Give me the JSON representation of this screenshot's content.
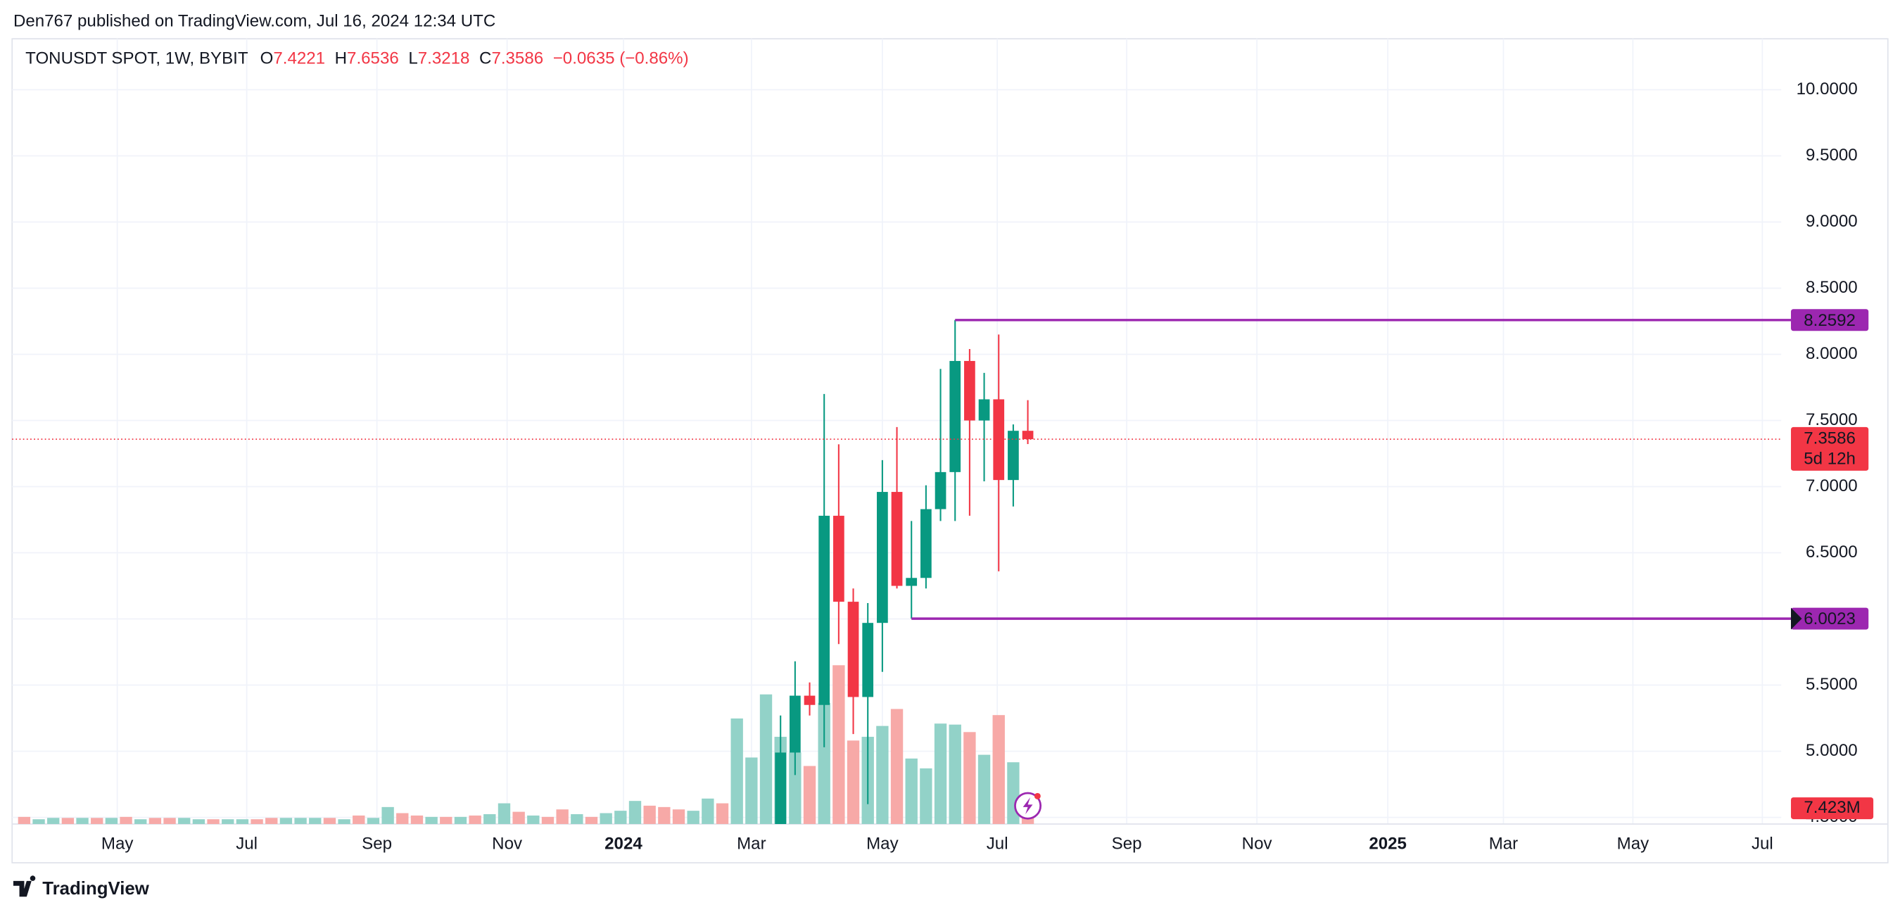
{
  "chart_data": {
    "type": "candlestick",
    "attribution": "Den767 published on TradingView.com, Jul 16, 2024 12:34 UTC",
    "title": "TONUSDT SPOT, 1W, BYBIT",
    "legend_labels": {
      "open": "O",
      "high": "H",
      "low": "L",
      "close": "C"
    },
    "change": "−0.0635 (−0.86%)",
    "open": [
      null,
      null,
      null,
      null,
      null,
      null,
      null,
      null,
      null,
      null,
      null,
      null,
      null,
      null,
      null,
      null,
      null,
      null,
      null,
      null,
      null,
      null,
      null,
      null,
      null,
      null,
      null,
      null,
      null,
      null,
      null,
      null,
      null,
      null,
      null,
      null,
      null,
      null,
      null,
      null,
      null,
      null,
      null,
      null,
      null,
      null,
      null,
      null,
      null,
      null,
      null,
      null,
      4.35,
      4.99,
      5.42,
      5.35,
      6.78,
      6.13,
      5.41,
      5.97,
      6.96,
      6.25,
      6.31,
      6.83,
      7.11,
      7.95,
      7.5,
      7.66,
      7.05,
      7.4221
    ],
    "high": [
      null,
      null,
      null,
      null,
      null,
      null,
      null,
      null,
      null,
      null,
      null,
      null,
      null,
      null,
      null,
      null,
      null,
      null,
      null,
      null,
      null,
      null,
      null,
      null,
      null,
      null,
      null,
      null,
      null,
      null,
      null,
      null,
      null,
      null,
      null,
      null,
      null,
      null,
      null,
      null,
      null,
      null,
      null,
      null,
      null,
      null,
      null,
      null,
      null,
      null,
      null,
      null,
      5.27,
      5.68,
      5.52,
      7.7,
      7.32,
      6.23,
      6.12,
      7.2,
      7.45,
      6.74,
      7.01,
      7.89,
      8.2592,
      8.04,
      7.86,
      8.15,
      7.47,
      7.6536
    ],
    "low": [
      null,
      null,
      null,
      null,
      null,
      null,
      null,
      null,
      null,
      null,
      null,
      null,
      null,
      null,
      null,
      null,
      null,
      null,
      null,
      null,
      null,
      null,
      null,
      null,
      null,
      null,
      null,
      null,
      null,
      null,
      null,
      null,
      null,
      null,
      null,
      null,
      null,
      null,
      null,
      null,
      null,
      null,
      null,
      null,
      null,
      null,
      null,
      null,
      null,
      null,
      null,
      null,
      4.2,
      4.82,
      5.27,
      5.03,
      5.81,
      5.13,
      4.6,
      5.6,
      6.23,
      6.0023,
      6.23,
      6.74,
      6.74,
      6.78,
      7.04,
      6.36,
      6.85,
      7.3218
    ],
    "close": [
      null,
      null,
      null,
      null,
      null,
      null,
      null,
      null,
      null,
      null,
      null,
      null,
      null,
      null,
      null,
      null,
      null,
      null,
      null,
      null,
      null,
      null,
      null,
      null,
      null,
      null,
      null,
      null,
      null,
      null,
      null,
      null,
      null,
      null,
      null,
      null,
      null,
      null,
      null,
      null,
      null,
      null,
      null,
      null,
      null,
      null,
      null,
      null,
      null,
      null,
      null,
      null,
      4.99,
      5.42,
      5.35,
      6.78,
      6.13,
      5.41,
      5.97,
      6.96,
      6.25,
      6.31,
      6.83,
      7.11,
      7.95,
      7.5,
      7.66,
      7.05,
      7.4221,
      7.3586
    ],
    "volume": [
      2.1,
      1.4,
      1.8,
      1.8,
      1.8,
      1.8,
      1.8,
      2.1,
      1.4,
      1.8,
      1.8,
      1.8,
      1.4,
      1.4,
      1.4,
      1.4,
      1.4,
      1.8,
      1.8,
      1.8,
      1.8,
      1.8,
      1.4,
      2.5,
      1.8,
      5.0,
      3.2,
      2.5,
      2.1,
      2.1,
      2.1,
      2.5,
      2.9,
      6.1,
      3.6,
      2.5,
      2.1,
      4.3,
      2.9,
      2.1,
      3.2,
      3.9,
      6.8,
      5.4,
      5.0,
      4.3,
      3.9,
      7.5,
      6.1,
      31.1,
      19.6,
      38.2,
      25.7,
      21.1,
      17.1,
      35.7,
      46.8,
      24.6,
      25.7,
      28.9,
      33.9,
      19.3,
      16.4,
      29.6,
      29.3,
      27.1,
      20.4,
      32.1,
      18.2,
      7.423
    ],
    "volume_rising": [
      false,
      true,
      true,
      false,
      true,
      false,
      true,
      false,
      true,
      false,
      false,
      true,
      true,
      false,
      true,
      true,
      false,
      false,
      true,
      true,
      true,
      false,
      true,
      false,
      true,
      true,
      false,
      false,
      true,
      false,
      true,
      false,
      true,
      true,
      false,
      true,
      false,
      false,
      true,
      false,
      true,
      true,
      true,
      false,
      false,
      false,
      true,
      true,
      false,
      true,
      true,
      true,
      true,
      true,
      false,
      true,
      false,
      false,
      true,
      true,
      false,
      true,
      true,
      true,
      true,
      false,
      true,
      false,
      true,
      false
    ],
    "xlim": [
      -0.83,
      120.8
    ],
    "xticks": [
      {
        "value": 6.4,
        "label": "May"
      },
      {
        "value": 15.3,
        "label": "Jul"
      },
      {
        "value": 24.25,
        "label": "Sep"
      },
      {
        "value": 33.2,
        "label": "Nov"
      },
      {
        "value": 41.2,
        "label": "2024"
      },
      {
        "value": 50,
        "label": "Mar"
      },
      {
        "value": 59,
        "label": "May"
      },
      {
        "value": 66.9,
        "label": "Jul"
      },
      {
        "value": 75.8,
        "label": "Sep"
      },
      {
        "value": 84.75,
        "label": "Nov"
      },
      {
        "value": 93.75,
        "label": "2025"
      },
      {
        "value": 101.7,
        "label": "Mar"
      },
      {
        "value": 110.6,
        "label": "May"
      },
      {
        "value": 119.5,
        "label": "Jul"
      }
    ],
    "ylim": [
      4.45,
      10.385
    ],
    "yticks": [
      {
        "value": 4.5,
        "label": "4.5000"
      },
      {
        "value": 5,
        "label": "5.0000"
      },
      {
        "value": 5.5,
        "label": "5.5000"
      },
      {
        "value": 6,
        "label": "6.0000"
      },
      {
        "value": 6.5,
        "label": "6.5000"
      },
      {
        "value": 7,
        "label": "7.0000"
      },
      {
        "value": 7.5,
        "label": "7.5000"
      },
      {
        "value": 8,
        "label": "8.0000"
      },
      {
        "value": 8.5,
        "label": "8.5000"
      },
      {
        "value": 9,
        "label": "9.0000"
      },
      {
        "value": 9.5,
        "label": "9.5000"
      },
      {
        "value": 10,
        "label": "10.0000"
      }
    ],
    "vlim": [
      0,
      100
    ],
    "grid": true,
    "colors": {
      "up": "#089981",
      "down": "#f23645",
      "volume_up": "#92d2c8",
      "volume_down": "#f7a9a7",
      "level": "#9c27b0"
    },
    "levels": [
      {
        "value": 8.2592,
        "start": 64
      },
      {
        "value": 6.0023,
        "start": 61
      }
    ],
    "countdown": "5d 12h",
    "volume_label": {
      "value": 7.423,
      "label": "7.423M"
    }
  },
  "footer": {
    "brand": "TradingView"
  }
}
